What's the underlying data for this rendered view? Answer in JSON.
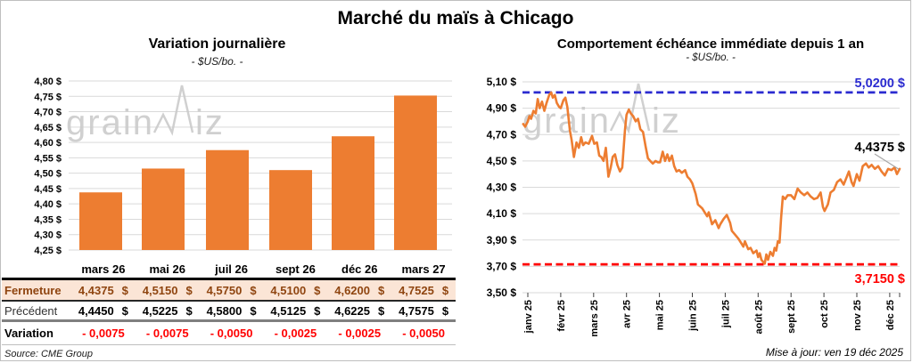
{
  "header": {
    "title": "Marché du maïs à Chicago"
  },
  "watermark": {
    "part1": "grain",
    "part2": "iz",
    "color": "#CBCBCB"
  },
  "colors": {
    "orange": "#ED7D31",
    "blue": "#2B2BD0",
    "red": "#FF0000",
    "grid": "#D9D9D9",
    "axis": "#BFBFBF",
    "tick": "#404040",
    "leader": "#A6A6A6",
    "fermeture_bg": "#FBE5D6",
    "fermeture_text": "#8F4510"
  },
  "left_chart": {
    "title": "Variation journalière",
    "subtitle": "- $US/bo. -"
  },
  "right_chart": {
    "title": "Comportement échéance immédiate depuis 1 an",
    "subtitle": "- $US/bo. -"
  },
  "table": {
    "columns": [
      "mars 26",
      "mai 26",
      "juil 26",
      "sept 26",
      "déc 26",
      "mars 27"
    ],
    "currency": "$",
    "rows": [
      {
        "label": "Fermeture",
        "style": "fermeture",
        "with_currency": true,
        "values": [
          "4,4375",
          "4,5150",
          "4,5750",
          "4,5100",
          "4,6200",
          "4,7525"
        ]
      },
      {
        "label": "Précédent",
        "style": "precedent",
        "with_currency": true,
        "values": [
          "4,4450",
          "4,5225",
          "4,5800",
          "4,5125",
          "4,6225",
          "4,7575"
        ]
      },
      {
        "label": "Variation",
        "style": "variation",
        "with_currency": false,
        "values": [
          "- 0,0075",
          "- 0,0075",
          "- 0,0050",
          "- 0,0025",
          "- 0,0025",
          "- 0,0050"
        ]
      }
    ]
  },
  "footer": {
    "source": "Source: CME Group",
    "updated": "Mise à jour: ven 19 déc 2025"
  },
  "chart_data": [
    {
      "type": "bar",
      "title": "Variation journalière",
      "unit": "$US/bo.",
      "categories": [
        "mars 26",
        "mai 26",
        "juil 26",
        "sept 26",
        "déc 26",
        "mars 27"
      ],
      "values": [
        4.4375,
        4.515,
        4.575,
        4.51,
        4.62,
        4.7525
      ],
      "ylim": [
        4.25,
        4.8
      ],
      "ytick_step": 0.05,
      "ytick_labels": [
        "4,80 $",
        "4,75 $",
        "4,70 $",
        "4,65 $",
        "4,60 $",
        "4,55 $",
        "4,50 $",
        "4,45 $",
        "4,40 $",
        "4,35 $",
        "4,30 $",
        "4,25 $"
      ],
      "grid": true,
      "bar_color": "#ED7D31"
    },
    {
      "type": "line",
      "title": "Comportement échéance immédiate depuis 1 an",
      "unit": "$US/bo.",
      "x_labels": [
        "janv 25",
        "févr 25",
        "mars 25",
        "avr 25",
        "mai 25",
        "juin 25",
        "juil 25",
        "août 25",
        "sept 25",
        "oct 25",
        "nov 25",
        "déc 25"
      ],
      "ylim": [
        3.5,
        5.1
      ],
      "ytick_labels": [
        "5,10 $",
        "4,90 $",
        "4,70 $",
        "4,50 $",
        "4,30 $",
        "4,10 $",
        "3,90 $",
        "3,70 $",
        "3,50 $"
      ],
      "grid": true,
      "legend": "none",
      "line_color": "#ED7D31",
      "upper_threshold": 5.02,
      "upper_label": "5,0200 $",
      "lower_threshold": 3.715,
      "lower_label": "3,7150 $",
      "last_value": 4.4375,
      "last_label": "4,4375 $",
      "series": [
        {
          "name": "échéance immédiate",
          "points": [
            [
              -0.14,
              4.78
            ],
            [
              -0.08,
              4.76
            ],
            [
              0.0,
              4.8
            ],
            [
              0.05,
              4.84
            ],
            [
              0.1,
              4.82
            ],
            [
              0.17,
              4.88
            ],
            [
              0.24,
              4.86
            ],
            [
              0.3,
              4.97
            ],
            [
              0.36,
              4.9
            ],
            [
              0.43,
              4.95
            ],
            [
              0.5,
              4.88
            ],
            [
              0.57,
              4.94
            ],
            [
              0.65,
              5.0
            ],
            [
              0.71,
              5.02
            ],
            [
              0.76,
              4.98
            ],
            [
              0.82,
              5.0
            ],
            [
              0.88,
              4.94
            ],
            [
              0.95,
              4.91
            ],
            [
              1.0,
              4.9
            ],
            [
              1.08,
              4.96
            ],
            [
              1.14,
              4.98
            ],
            [
              1.2,
              4.91
            ],
            [
              1.28,
              4.73
            ],
            [
              1.33,
              4.66
            ],
            [
              1.4,
              4.53
            ],
            [
              1.48,
              4.64
            ],
            [
              1.55,
              4.6
            ],
            [
              1.62,
              4.68
            ],
            [
              1.68,
              4.62
            ],
            [
              1.75,
              4.64
            ],
            [
              1.85,
              4.63
            ],
            [
              1.95,
              4.69
            ],
            [
              2.02,
              4.63
            ],
            [
              2.1,
              4.64
            ],
            [
              2.17,
              4.54
            ],
            [
              2.23,
              4.53
            ],
            [
              2.3,
              4.5
            ],
            [
              2.37,
              4.6
            ],
            [
              2.45,
              4.38
            ],
            [
              2.52,
              4.45
            ],
            [
              2.58,
              4.53
            ],
            [
              2.65,
              4.55
            ],
            [
              2.72,
              4.47
            ],
            [
              2.8,
              4.42
            ],
            [
              2.87,
              4.45
            ],
            [
              2.95,
              4.73
            ],
            [
              3.0,
              4.85
            ],
            [
              3.07,
              4.89
            ],
            [
              3.13,
              4.86
            ],
            [
              3.2,
              4.84
            ],
            [
              3.28,
              4.8
            ],
            [
              3.35,
              4.82
            ],
            [
              3.42,
              4.74
            ],
            [
              3.5,
              4.72
            ],
            [
              3.58,
              4.61
            ],
            [
              3.65,
              4.52
            ],
            [
              3.72,
              4.5
            ],
            [
              3.8,
              4.48
            ],
            [
              3.88,
              4.5
            ],
            [
              3.95,
              4.49
            ],
            [
              4.02,
              4.49
            ],
            [
              4.1,
              4.57
            ],
            [
              4.17,
              4.5
            ],
            [
              4.24,
              4.55
            ],
            [
              4.3,
              4.5
            ],
            [
              4.38,
              4.54
            ],
            [
              4.45,
              4.46
            ],
            [
              4.52,
              4.42
            ],
            [
              4.6,
              4.43
            ],
            [
              4.68,
              4.41
            ],
            [
              4.78,
              4.43
            ],
            [
              4.85,
              4.38
            ],
            [
              4.93,
              4.36
            ],
            [
              5.0,
              4.33
            ],
            [
              5.1,
              4.25
            ],
            [
              5.17,
              4.17
            ],
            [
              5.3,
              4.14
            ],
            [
              5.45,
              4.08
            ],
            [
              5.5,
              4.11
            ],
            [
              5.6,
              4.02
            ],
            [
              5.7,
              4.05
            ],
            [
              5.8,
              3.99
            ],
            [
              5.85,
              4.02
            ],
            [
              5.95,
              4.06
            ],
            [
              6.05,
              4.09
            ],
            [
              6.15,
              4.03
            ],
            [
              6.2,
              3.97
            ],
            [
              6.3,
              3.94
            ],
            [
              6.4,
              3.91
            ],
            [
              6.5,
              3.87
            ],
            [
              6.55,
              3.85
            ],
            [
              6.6,
              3.89
            ],
            [
              6.7,
              3.83
            ],
            [
              6.77,
              3.84
            ],
            [
              6.85,
              3.8
            ],
            [
              6.95,
              3.82
            ],
            [
              7.0,
              3.77
            ],
            [
              7.05,
              3.8
            ],
            [
              7.1,
              3.75
            ],
            [
              7.2,
              3.72
            ],
            [
              7.25,
              3.79
            ],
            [
              7.3,
              3.75
            ],
            [
              7.37,
              3.81
            ],
            [
              7.45,
              3.78
            ],
            [
              7.5,
              3.84
            ],
            [
              7.55,
              3.82
            ],
            [
              7.6,
              3.89
            ],
            [
              7.65,
              3.88
            ],
            [
              7.7,
              4.07
            ],
            [
              7.75,
              4.23
            ],
            [
              7.82,
              4.21
            ],
            [
              7.9,
              4.24
            ],
            [
              8.0,
              4.24
            ],
            [
              8.1,
              4.21
            ],
            [
              8.2,
              4.29
            ],
            [
              8.3,
              4.26
            ],
            [
              8.4,
              4.24
            ],
            [
              8.5,
              4.26
            ],
            [
              8.6,
              4.23
            ],
            [
              8.7,
              4.21
            ],
            [
              8.8,
              4.22
            ],
            [
              8.9,
              4.26
            ],
            [
              8.97,
              4.15
            ],
            [
              9.02,
              4.12
            ],
            [
              9.12,
              4.17
            ],
            [
              9.2,
              4.26
            ],
            [
              9.3,
              4.28
            ],
            [
              9.4,
              4.34
            ],
            [
              9.5,
              4.36
            ],
            [
              9.6,
              4.32
            ],
            [
              9.68,
              4.37
            ],
            [
              9.76,
              4.42
            ],
            [
              9.84,
              4.34
            ],
            [
              9.9,
              4.31
            ],
            [
              10.0,
              4.4
            ],
            [
              10.08,
              4.35
            ],
            [
              10.18,
              4.46
            ],
            [
              10.28,
              4.48
            ],
            [
              10.36,
              4.45
            ],
            [
              10.45,
              4.47
            ],
            [
              10.55,
              4.44
            ],
            [
              10.65,
              4.46
            ],
            [
              10.75,
              4.42
            ],
            [
              10.85,
              4.39
            ],
            [
              10.95,
              4.44
            ],
            [
              11.05,
              4.43
            ],
            [
              11.15,
              4.45
            ],
            [
              11.22,
              4.4
            ],
            [
              11.3,
              4.44
            ]
          ]
        }
      ]
    }
  ]
}
